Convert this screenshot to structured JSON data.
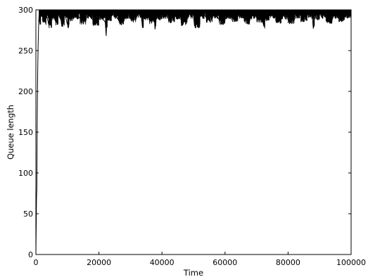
{
  "chart_data": {
    "type": "line",
    "title": "",
    "xlabel": "Time",
    "ylabel": "Queue length",
    "xlim": [
      0,
      100000
    ],
    "ylim": [
      0,
      300
    ],
    "xticks": [
      0,
      20000,
      40000,
      60000,
      80000,
      100000
    ],
    "xtick_labels": [
      "0",
      "20000",
      "40000",
      "60000",
      "80000",
      "100000"
    ],
    "yticks": [
      0,
      50,
      100,
      150,
      200,
      250,
      300
    ],
    "ytick_labels": [
      "0",
      "50",
      "100",
      "150",
      "200",
      "250",
      "300"
    ],
    "grid": false,
    "legend": "none",
    "series": [
      {
        "color": "#000000",
        "x": [
          0,
          100,
          200,
          300,
          400,
          500,
          600,
          700,
          800,
          900,
          1000,
          1200,
          1500,
          2000,
          3000,
          3200,
          4000,
          5000,
          6000,
          7000,
          8000,
          9000,
          10000,
          10500,
          12000,
          14000,
          16000,
          18000,
          20000,
          22000,
          22300,
          22600,
          24000,
          26000,
          28000,
          30000,
          32000,
          33500,
          33800,
          34100,
          36000,
          37500,
          37800,
          38100,
          40000,
          42000,
          44000,
          46000,
          48000,
          50000,
          50300,
          52000,
          54000,
          56000,
          58000,
          60000,
          62000,
          64000,
          66000,
          68000,
          70000,
          72000,
          72300,
          72600,
          74000,
          76000,
          78000,
          80000,
          82000,
          84000,
          86000,
          87700,
          88000,
          88300,
          90000,
          92000,
          94000,
          96000,
          98000,
          100000
        ],
        "y": [
          0,
          35,
          70,
          80,
          150,
          200,
          230,
          255,
          270,
          285,
          293,
          288,
          298,
          292,
          285,
          297,
          283,
          295,
          289,
          296,
          287,
          298,
          282,
          294,
          296,
          290,
          297,
          288,
          295,
          285,
          268,
          294,
          297,
          289,
          296,
          292,
          297,
          293,
          278,
          295,
          290,
          292,
          276,
          295,
          297,
          291,
          296,
          288,
          297,
          293,
          281,
          296,
          292,
          297,
          289,
          296,
          293,
          297,
          290,
          296,
          292,
          286,
          280,
          294,
          297,
          291,
          296,
          290,
          297,
          293,
          296,
          292,
          277,
          295,
          297,
          291,
          296,
          293,
          297,
          292
        ]
      }
    ]
  }
}
